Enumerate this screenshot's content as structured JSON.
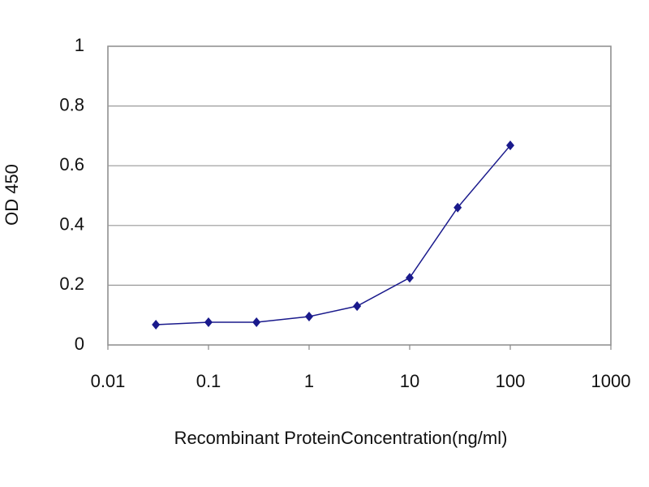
{
  "chart_data": {
    "type": "line",
    "x_label": "Recombinant ProteinConcentration(ng/ml)",
    "y_label": "OD 450",
    "xscale": "log",
    "x": [
      0.03,
      0.1,
      0.3,
      1,
      3,
      10,
      30,
      100
    ],
    "series": [
      {
        "color": "#1a1a8c",
        "values": [
          0.068,
          0.076,
          0.076,
          0.095,
          0.13,
          0.225,
          0.46,
          0.668
        ]
      }
    ],
    "xlim": [
      0.01,
      1000
    ],
    "xticks": [
      0.01,
      0.1,
      1,
      10,
      100,
      1000
    ],
    "ylim": [
      0,
      1
    ],
    "yticks": [
      0,
      0.2,
      0.4,
      0.6,
      0.8,
      1
    ],
    "grid": true
  }
}
